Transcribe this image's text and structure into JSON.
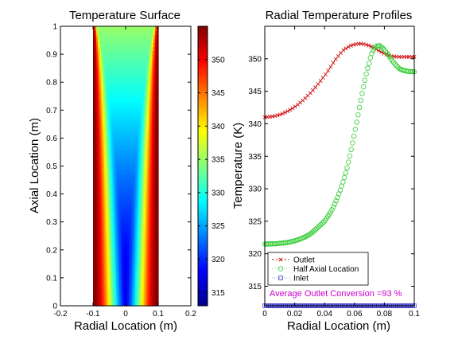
{
  "chart_data": [
    {
      "type": "heatmap",
      "title": "Temperature Surface",
      "xlabel": "Radial Location (m)",
      "ylabel": "Axial Location (m)",
      "xlim": [
        -0.2,
        0.2
      ],
      "ylim": [
        0,
        1
      ],
      "xticks": [
        "-0.2",
        "-0.1",
        "0",
        "0.1",
        "0.2"
      ],
      "yticks": [
        "0",
        "0.1",
        "0.2",
        "0.3",
        "0.4",
        "0.5",
        "0.6",
        "0.7",
        "0.8",
        "0.9",
        "1"
      ],
      "data_extent": {
        "x": [
          -0.1,
          0.1
        ],
        "y": [
          0,
          1
        ]
      },
      "colorbar": {
        "colormap": "jet",
        "range": [
          313,
          355
        ],
        "ticks": [
          "315",
          "320",
          "325",
          "330",
          "335",
          "340",
          "345",
          "350"
        ]
      },
      "field": {
        "T_center_inlet": 316,
        "T_center_outlet": 335,
        "T_wall": 355,
        "description_profile": "hot near wall, cold core narrowing toward outlet"
      }
    },
    {
      "type": "line",
      "title": "Radial Temperature Profiles",
      "xlabel": "Radial Location (m)",
      "ylabel": "Temperature (K)",
      "xlim": [
        0,
        0.1
      ],
      "ylim": [
        312,
        355
      ],
      "xticks": [
        "0",
        "0.02",
        "0.04",
        "0.06",
        "0.08",
        "0.1"
      ],
      "yticks": [
        "315",
        "320",
        "325",
        "330",
        "335",
        "340",
        "345",
        "350"
      ],
      "series": [
        {
          "name": "Outlet",
          "marker": "x",
          "color": "#cc0000",
          "x": [
            0,
            0.01,
            0.02,
            0.03,
            0.04,
            0.05,
            0.055,
            0.06,
            0.065,
            0.07,
            0.075,
            0.08,
            0.085,
            0.09,
            0.095,
            0.1
          ],
          "y": [
            341,
            341.4,
            342.6,
            344.6,
            347.4,
            350.6,
            351.7,
            352.2,
            352.3,
            352.0,
            351.4,
            350.8,
            350.4,
            350.3,
            350.3,
            350.3
          ]
        },
        {
          "name": "Half Axial Location",
          "marker": "o",
          "color": "#33cc33",
          "x": [
            0,
            0.01,
            0.02,
            0.03,
            0.04,
            0.045,
            0.05,
            0.055,
            0.06,
            0.065,
            0.07,
            0.073,
            0.076,
            0.078,
            0.082,
            0.086,
            0.09,
            0.095,
            0.1
          ],
          "y": [
            321.5,
            321.6,
            322.0,
            323.0,
            325.0,
            326.8,
            329.5,
            333.2,
            338.5,
            344.5,
            349.5,
            351.5,
            352.0,
            351.8,
            350.8,
            349.5,
            348.5,
            348.1,
            348.0
          ]
        },
        {
          "name": "Inlet",
          "marker": "s",
          "color": "#3333cc",
          "x": [
            0,
            0.1
          ],
          "y": [
            312,
            312
          ]
        }
      ],
      "legend": "bottom-left",
      "annotation": {
        "text": "Average Outlet Conversion =93 %",
        "color": "#cc00cc"
      }
    }
  ]
}
